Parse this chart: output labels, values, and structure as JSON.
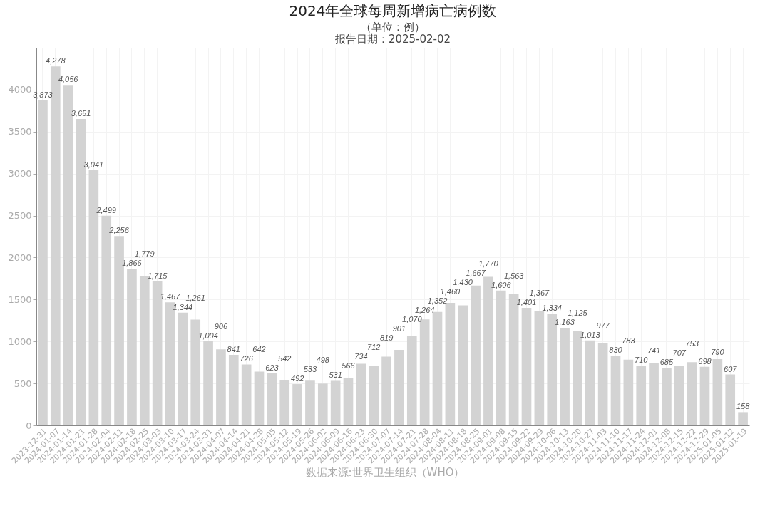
{
  "chart_data": {
    "type": "bar",
    "title": "2024年全球每周新增病亡病例数",
    "subtitle": "（单位：例）",
    "annotations": [
      "报告日期：2025-02-02",
      "数据来源:世界卫生组织（WHO）"
    ],
    "categories": [
      "2023-12-31",
      "2024-01-07",
      "2024-01-14",
      "2024-01-21",
      "2024-01-28",
      "2024-02-04",
      "2024-02-11",
      "2024-02-18",
      "2024-02-25",
      "2024-03-03",
      "2024-03-10",
      "2024-03-17",
      "2024-03-24",
      "2024-03-31",
      "2024-04-07",
      "2024-04-14",
      "2024-04-21",
      "2024-04-28",
      "2024-05-05",
      "2024-05-12",
      "2024-05-19",
      "2024-05-26",
      "2024-06-02",
      "2024-06-09",
      "2024-06-16",
      "2024-06-23",
      "2024-06-30",
      "2024-07-07",
      "2024-07-14",
      "2024-07-21",
      "2024-07-28",
      "2024-08-04",
      "2024-08-11",
      "2024-08-18",
      "2024-08-25",
      "2024-09-01",
      "2024-09-08",
      "2024-09-15",
      "2024-09-22",
      "2024-09-29",
      "2024-10-06",
      "2024-10-13",
      "2024-10-20",
      "2024-10-27",
      "2024-11-03",
      "2024-11-10",
      "2024-11-17",
      "2024-11-24",
      "2024-12-01",
      "2024-12-08",
      "2024-12-15",
      "2024-12-22",
      "2024-12-29",
      "2025-01-05",
      "2025-01-12",
      "2025-01-19"
    ],
    "values": [
      3873,
      4278,
      4056,
      3651,
      3041,
      2499,
      2256,
      1866,
      1779,
      1715,
      1467,
      1344,
      1261,
      1004,
      906,
      841,
      726,
      642,
      623,
      542,
      492,
      533,
      498,
      531,
      566,
      734,
      712,
      819,
      901,
      1070,
      1264,
      1352,
      1460,
      1430,
      1667,
      1770,
      1606,
      1563,
      1401,
      1367,
      1334,
      1163,
      1125,
      1013,
      977,
      830,
      783,
      710,
      741,
      685,
      707,
      753,
      698,
      790,
      607,
      158
    ],
    "value_labels": [
      "3,873",
      "4,278",
      "4,056",
      "3,651",
      "3,041",
      "2,499",
      "2,256",
      "1,866",
      "1,779",
      "1,715",
      "1,467",
      "1,344",
      "1,261",
      "1,004",
      "906",
      "841",
      "726",
      "642",
      "623",
      "542",
      "492",
      "533",
      "498",
      "531",
      "566",
      "734",
      "712",
      "819",
      "901",
      "1,070",
      "1,264",
      "1,352",
      "1,460",
      "1,430",
      "1,667",
      "1,770",
      "1,606",
      "1,563",
      "1,401",
      "1,367",
      "1,334",
      "1,163",
      "1,125",
      "1,013",
      "977",
      "830",
      "783",
      "710",
      "741",
      "685",
      "707",
      "753",
      "698",
      "790",
      "607",
      "158"
    ],
    "color": "#d3d3d3",
    "ylim": [
      0,
      4500
    ],
    "yticks": [
      0,
      500,
      1000,
      1500,
      2000,
      2500,
      3000,
      3500,
      4000
    ],
    "grid": true
  }
}
